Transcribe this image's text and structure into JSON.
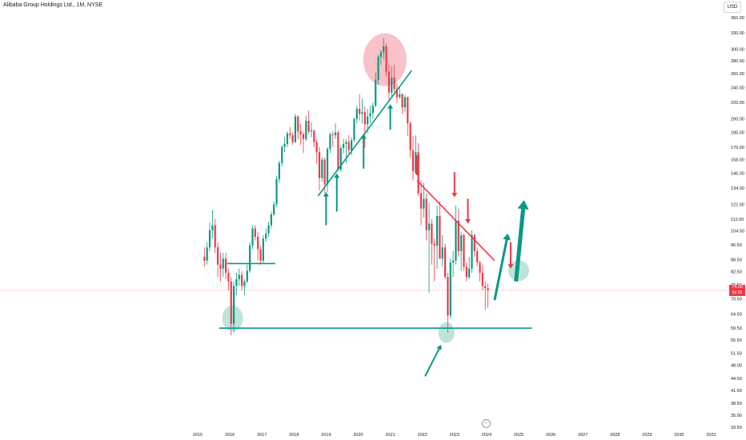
{
  "header": {
    "title": "Alibaba Group Holdings Ltd., 1M, NYSE",
    "currency": "USD"
  },
  "price_label": {
    "value": "74.09",
    "countdown": "6d 2h"
  },
  "colors": {
    "up": "#089981",
    "down": "#f23645",
    "circle_red": "#f7a6b0",
    "circle_green": "#9fd8cc",
    "drawing_green": "#089981",
    "drawing_red": "#f23645",
    "axis_text": "#131722"
  },
  "chart_data": {
    "type": "candlestick",
    "title": "Alibaba Group Holdings Ltd., 1M, NYSE",
    "xlabel": "",
    "ylabel": "",
    "currency": "USD",
    "log_scale": true,
    "current_price": 74.09,
    "y_ticks": [
      "360.00",
      "330.00",
      "300.00",
      "280.00",
      "260.00",
      "240.00",
      "220.00",
      "200.00",
      "185.00",
      "170.00",
      "158.00",
      "146.00",
      "134.00",
      "122.00",
      "112.00",
      "104.50",
      "96.50",
      "88.50",
      "82.50",
      "76.50",
      "70.50",
      "64.50",
      "59.50",
      "55.50",
      "51.50",
      "48.00",
      "44.50",
      "41.50",
      "38.50",
      "35.90",
      "33.50"
    ],
    "x_ticks": [
      "2015",
      "2016",
      "2017",
      "2018",
      "2019",
      "2020",
      "2021",
      "2022",
      "2023",
      "2024",
      "2025",
      "2026",
      "2027",
      "2028",
      "2029",
      "2030",
      "2031"
    ],
    "candles": [
      {
        "t": "2015-03",
        "o": 90,
        "h": 95,
        "l": 85,
        "c": 88
      },
      {
        "t": "2015-04",
        "o": 88,
        "h": 98,
        "l": 86,
        "c": 95
      },
      {
        "t": "2015-05",
        "o": 95,
        "h": 110,
        "l": 93,
        "c": 105
      },
      {
        "t": "2015-06",
        "o": 105,
        "h": 118,
        "l": 100,
        "c": 108
      },
      {
        "t": "2015-07",
        "o": 108,
        "h": 112,
        "l": 92,
        "c": 95
      },
      {
        "t": "2015-08",
        "o": 95,
        "h": 98,
        "l": 80,
        "c": 86
      },
      {
        "t": "2015-09",
        "o": 86,
        "h": 92,
        "l": 78,
        "c": 84
      },
      {
        "t": "2015-10",
        "o": 84,
        "h": 92,
        "l": 80,
        "c": 89
      },
      {
        "t": "2015-11",
        "o": 89,
        "h": 92,
        "l": 79,
        "c": 82
      },
      {
        "t": "2015-12",
        "o": 82,
        "h": 84,
        "l": 74,
        "c": 78
      },
      {
        "t": "2016-01",
        "o": 78,
        "h": 80,
        "l": 57,
        "c": 61
      },
      {
        "t": "2016-02",
        "o": 61,
        "h": 78,
        "l": 58,
        "c": 76
      },
      {
        "t": "2016-03",
        "o": 76,
        "h": 82,
        "l": 72,
        "c": 79
      },
      {
        "t": "2016-04",
        "o": 79,
        "h": 84,
        "l": 76,
        "c": 81
      },
      {
        "t": "2016-05",
        "o": 81,
        "h": 83,
        "l": 74,
        "c": 76
      },
      {
        "t": "2016-06",
        "o": 76,
        "h": 79,
        "l": 72,
        "c": 78
      },
      {
        "t": "2016-07",
        "o": 78,
        "h": 86,
        "l": 77,
        "c": 83
      },
      {
        "t": "2016-08",
        "o": 83,
        "h": 98,
        "l": 82,
        "c": 96
      },
      {
        "t": "2016-09",
        "o": 96,
        "h": 108,
        "l": 94,
        "c": 106
      },
      {
        "t": "2016-10",
        "o": 106,
        "h": 108,
        "l": 99,
        "c": 101
      },
      {
        "t": "2016-11",
        "o": 101,
        "h": 104,
        "l": 88,
        "c": 94
      },
      {
        "t": "2016-12",
        "o": 94,
        "h": 96,
        "l": 86,
        "c": 88
      },
      {
        "t": "2017-01",
        "o": 88,
        "h": 102,
        "l": 87,
        "c": 100
      },
      {
        "t": "2017-02",
        "o": 100,
        "h": 106,
        "l": 98,
        "c": 103
      },
      {
        "t": "2017-03",
        "o": 103,
        "h": 110,
        "l": 101,
        "c": 108
      },
      {
        "t": "2017-04",
        "o": 108,
        "h": 117,
        "l": 106,
        "c": 115
      },
      {
        "t": "2017-05",
        "o": 115,
        "h": 124,
        "l": 114,
        "c": 122
      },
      {
        "t": "2017-06",
        "o": 122,
        "h": 144,
        "l": 120,
        "c": 141
      },
      {
        "t": "2017-07",
        "o": 141,
        "h": 157,
        "l": 138,
        "c": 155
      },
      {
        "t": "2017-08",
        "o": 155,
        "h": 172,
        "l": 152,
        "c": 170
      },
      {
        "t": "2017-09",
        "o": 170,
        "h": 180,
        "l": 165,
        "c": 173
      },
      {
        "t": "2017-10",
        "o": 173,
        "h": 186,
        "l": 170,
        "c": 184
      },
      {
        "t": "2017-11",
        "o": 184,
        "h": 191,
        "l": 178,
        "c": 182
      },
      {
        "t": "2017-12",
        "o": 182,
        "h": 185,
        "l": 172,
        "c": 175
      },
      {
        "t": "2018-01",
        "o": 175,
        "h": 206,
        "l": 174,
        "c": 203
      },
      {
        "t": "2018-02",
        "o": 203,
        "h": 204,
        "l": 178,
        "c": 186
      },
      {
        "t": "2018-03",
        "o": 186,
        "h": 194,
        "l": 172,
        "c": 183
      },
      {
        "t": "2018-04",
        "o": 183,
        "h": 186,
        "l": 164,
        "c": 178
      },
      {
        "t": "2018-05",
        "o": 178,
        "h": 204,
        "l": 176,
        "c": 198
      },
      {
        "t": "2018-06",
        "o": 198,
        "h": 210,
        "l": 183,
        "c": 186
      },
      {
        "t": "2018-07",
        "o": 186,
        "h": 196,
        "l": 180,
        "c": 187
      },
      {
        "t": "2018-08",
        "o": 187,
        "h": 188,
        "l": 170,
        "c": 175
      },
      {
        "t": "2018-09",
        "o": 175,
        "h": 178,
        "l": 154,
        "c": 165
      },
      {
        "t": "2018-10",
        "o": 165,
        "h": 170,
        "l": 132,
        "c": 142
      },
      {
        "t": "2018-11",
        "o": 142,
        "h": 160,
        "l": 139,
        "c": 158
      },
      {
        "t": "2018-12",
        "o": 158,
        "h": 160,
        "l": 130,
        "c": 137
      },
      {
        "t": "2019-01",
        "o": 137,
        "h": 170,
        "l": 131,
        "c": 168
      },
      {
        "t": "2019-02",
        "o": 168,
        "h": 185,
        "l": 164,
        "c": 183
      },
      {
        "t": "2019-03",
        "o": 183,
        "h": 186,
        "l": 170,
        "c": 182
      },
      {
        "t": "2019-04",
        "o": 182,
        "h": 195,
        "l": 178,
        "c": 185
      },
      {
        "t": "2019-05",
        "o": 185,
        "h": 187,
        "l": 148,
        "c": 149
      },
      {
        "t": "2019-06",
        "o": 149,
        "h": 172,
        "l": 147,
        "c": 169
      },
      {
        "t": "2019-07",
        "o": 169,
        "h": 178,
        "l": 164,
        "c": 173
      },
      {
        "t": "2019-08",
        "o": 173,
        "h": 178,
        "l": 155,
        "c": 175
      },
      {
        "t": "2019-09",
        "o": 175,
        "h": 182,
        "l": 164,
        "c": 167
      },
      {
        "t": "2019-10",
        "o": 167,
        "h": 180,
        "l": 162,
        "c": 177
      },
      {
        "t": "2019-11",
        "o": 177,
        "h": 202,
        "l": 175,
        "c": 200
      },
      {
        "t": "2019-12",
        "o": 200,
        "h": 216,
        "l": 195,
        "c": 212
      },
      {
        "t": "2020-01",
        "o": 212,
        "h": 231,
        "l": 198,
        "c": 206
      },
      {
        "t": "2020-02",
        "o": 206,
        "h": 225,
        "l": 195,
        "c": 208
      },
      {
        "t": "2020-03",
        "o": 208,
        "h": 215,
        "l": 169,
        "c": 194
      },
      {
        "t": "2020-04",
        "o": 194,
        "h": 212,
        "l": 184,
        "c": 203
      },
      {
        "t": "2020-05",
        "o": 203,
        "h": 216,
        "l": 195,
        "c": 207
      },
      {
        "t": "2020-06",
        "o": 207,
        "h": 220,
        "l": 200,
        "c": 216
      },
      {
        "t": "2020-07",
        "o": 216,
        "h": 262,
        "l": 214,
        "c": 251
      },
      {
        "t": "2020-08",
        "o": 251,
        "h": 290,
        "l": 244,
        "c": 287
      },
      {
        "t": "2020-09",
        "o": 287,
        "h": 299,
        "l": 274,
        "c": 294
      },
      {
        "t": "2020-10",
        "o": 294,
        "h": 319,
        "l": 283,
        "c": 305
      },
      {
        "t": "2020-11",
        "o": 305,
        "h": 310,
        "l": 256,
        "c": 263
      },
      {
        "t": "2020-12",
        "o": 263,
        "h": 274,
        "l": 222,
        "c": 233
      },
      {
        "t": "2021-01",
        "o": 233,
        "h": 271,
        "l": 228,
        "c": 254
      },
      {
        "t": "2021-02",
        "o": 254,
        "h": 274,
        "l": 234,
        "c": 238
      },
      {
        "t": "2021-03",
        "o": 238,
        "h": 246,
        "l": 219,
        "c": 227
      },
      {
        "t": "2021-04",
        "o": 227,
        "h": 240,
        "l": 225,
        "c": 231
      },
      {
        "t": "2021-05",
        "o": 231,
        "h": 232,
        "l": 206,
        "c": 214
      },
      {
        "t": "2021-06",
        "o": 214,
        "h": 230,
        "l": 208,
        "c": 227
      },
      {
        "t": "2021-07",
        "o": 227,
        "h": 228,
        "l": 181,
        "c": 195
      },
      {
        "t": "2021-08",
        "o": 195,
        "h": 197,
        "l": 160,
        "c": 167
      },
      {
        "t": "2021-09",
        "o": 167,
        "h": 181,
        "l": 140,
        "c": 148
      },
      {
        "t": "2021-10",
        "o": 148,
        "h": 182,
        "l": 145,
        "c": 165
      },
      {
        "t": "2021-11",
        "o": 165,
        "h": 174,
        "l": 128,
        "c": 130
      },
      {
        "t": "2021-12",
        "o": 130,
        "h": 140,
        "l": 108,
        "c": 119
      },
      {
        "t": "2022-01",
        "o": 119,
        "h": 138,
        "l": 113,
        "c": 126
      },
      {
        "t": "2022-02",
        "o": 126,
        "h": 130,
        "l": 99,
        "c": 105
      },
      {
        "t": "2022-03",
        "o": 105,
        "h": 123,
        "l": 73,
        "c": 109
      },
      {
        "t": "2022-04",
        "o": 109,
        "h": 112,
        "l": 86,
        "c": 97
      },
      {
        "t": "2022-05",
        "o": 97,
        "h": 100,
        "l": 78,
        "c": 96
      },
      {
        "t": "2022-06",
        "o": 96,
        "h": 121,
        "l": 84,
        "c": 114
      },
      {
        "t": "2022-07",
        "o": 114,
        "h": 124,
        "l": 89,
        "c": 89
      },
      {
        "t": "2022-08",
        "o": 89,
        "h": 102,
        "l": 85,
        "c": 95
      },
      {
        "t": "2022-09",
        "o": 95,
        "h": 97,
        "l": 79,
        "c": 80
      },
      {
        "t": "2022-10",
        "o": 80,
        "h": 82,
        "l": 58,
        "c": 64
      },
      {
        "t": "2022-11",
        "o": 64,
        "h": 89,
        "l": 63,
        "c": 87
      },
      {
        "t": "2022-12",
        "o": 87,
        "h": 93,
        "l": 80,
        "c": 88
      },
      {
        "t": "2023-01",
        "o": 88,
        "h": 121,
        "l": 86,
        "c": 111
      },
      {
        "t": "2023-02",
        "o": 111,
        "h": 119,
        "l": 90,
        "c": 93
      },
      {
        "t": "2023-03",
        "o": 93,
        "h": 104,
        "l": 83,
        "c": 102
      },
      {
        "t": "2023-04",
        "o": 102,
        "h": 103,
        "l": 83,
        "c": 85
      },
      {
        "t": "2023-05",
        "o": 85,
        "h": 87,
        "l": 78,
        "c": 80
      },
      {
        "t": "2023-06",
        "o": 80,
        "h": 90,
        "l": 79,
        "c": 84
      },
      {
        "t": "2023-07",
        "o": 84,
        "h": 105,
        "l": 82,
        "c": 102
      },
      {
        "t": "2023-08",
        "o": 102,
        "h": 103,
        "l": 90,
        "c": 93
      },
      {
        "t": "2023-09",
        "o": 93,
        "h": 95,
        "l": 85,
        "c": 87
      },
      {
        "t": "2023-10",
        "o": 87,
        "h": 88,
        "l": 78,
        "c": 82
      },
      {
        "t": "2023-11",
        "o": 82,
        "h": 86,
        "l": 74,
        "c": 76
      },
      {
        "t": "2023-12",
        "o": 76,
        "h": 78,
        "l": 66,
        "c": 75
      },
      {
        "t": "2024-01",
        "o": 75,
        "h": 77,
        "l": 67,
        "c": 74.09
      }
    ],
    "annotations": {
      "horizontal_lines": [
        {
          "name": "support-line",
          "price": 59.5,
          "from": "2015-09",
          "to": "2025-06",
          "color": "green"
        },
        {
          "name": "resistance-line",
          "price": 86.5,
          "from": "2015-12",
          "to": "2017-06",
          "color": "green"
        }
      ],
      "trendlines": [
        {
          "name": "rising-trendline",
          "from": [
            "2018-10",
            128
          ],
          "to": [
            "2021-09",
            265
          ],
          "color": "green"
        },
        {
          "name": "falling-trendline",
          "from": [
            "2021-11",
            140
          ],
          "to": [
            "2024-04",
            88
          ],
          "color": "red"
        }
      ],
      "circles": [
        {
          "name": "top-circle",
          "at": [
            "2020-11",
            282
          ],
          "color": "red"
        },
        {
          "name": "bottom-circle-2016",
          "at": [
            "2016-02",
            63
          ],
          "color": "green"
        },
        {
          "name": "bottom-circle-2022",
          "at": [
            "2022-10",
            58
          ],
          "color": "green"
        },
        {
          "name": "target-circle",
          "at": [
            "2025-01",
            83
          ],
          "color": "green"
        }
      ],
      "up_arrows": [
        {
          "name": "arrow-up-1",
          "from": [
            "2019-01",
            108
          ],
          "to": [
            "2019-01",
            131
          ]
        },
        {
          "name": "arrow-up-2",
          "from": [
            "2019-05",
            117
          ],
          "to": [
            "2019-05",
            146
          ]
        },
        {
          "name": "arrow-up-3",
          "from": [
            "2020-03",
            150
          ],
          "to": [
            "2020-03",
            183
          ]
        },
        {
          "name": "arrow-up-4",
          "from": [
            "2021-01",
            188
          ],
          "to": [
            "2021-01",
            218
          ]
        },
        {
          "name": "arrow-up-diag-1",
          "from": [
            "2022-02",
            45
          ],
          "to": [
            "2022-08",
            54
          ]
        },
        {
          "name": "arrow-up-diag-2",
          "from": [
            "2024-04",
            70
          ],
          "to": [
            "2024-09",
            103
          ]
        },
        {
          "name": "arrow-up-big",
          "from": [
            "2024-12",
            78
          ],
          "to": [
            "2025-03",
            125
          ]
        }
      ],
      "down_arrows": [
        {
          "name": "arrow-down-1",
          "from": [
            "2021-11",
            162
          ],
          "to": [
            "2021-11",
            144
          ]
        },
        {
          "name": "arrow-down-2",
          "from": [
            "2023-01",
            147
          ],
          "to": [
            "2023-01",
            127
          ]
        },
        {
          "name": "arrow-down-3",
          "from": [
            "2023-06",
            126
          ],
          "to": [
            "2023-06",
            109
          ]
        },
        {
          "name": "arrow-down-4",
          "from": [
            "2024-10",
            98
          ],
          "to": [
            "2024-10",
            84
          ]
        }
      ]
    }
  }
}
